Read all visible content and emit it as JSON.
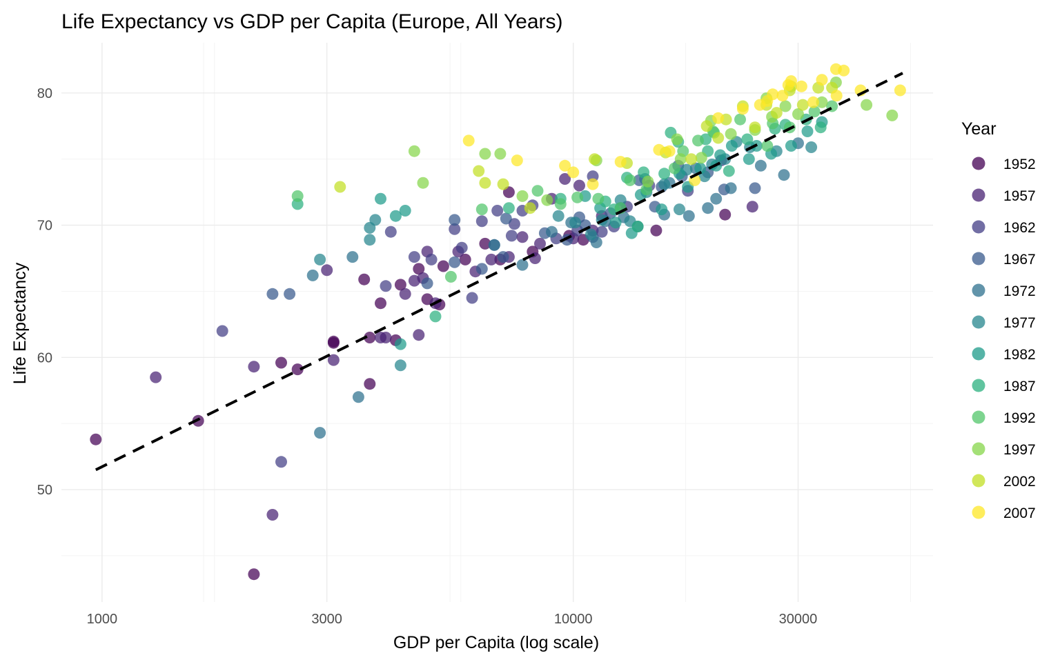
{
  "chart_data": {
    "type": "scatter",
    "title": "Life Expectancy vs GDP per Capita (Europe, All Years)",
    "xlabel": "GDP per Capita (log scale)",
    "ylabel": "Life Expectancy",
    "x_scale": "log10",
    "xlim": [
      820,
      58000
    ],
    "ylim": [
      41.5,
      83.8
    ],
    "x_ticks": [
      1000,
      3000,
      10000,
      30000
    ],
    "x_tick_labels": [
      "1000",
      "3000",
      "10000",
      "30000"
    ],
    "y_ticks": [
      50,
      60,
      70,
      80
    ],
    "y_tick_labels": [
      "50",
      "60",
      "70",
      "80"
    ],
    "grid": true,
    "legend": {
      "title": "Year",
      "position": "right",
      "entries": [
        {
          "label": "1952",
          "color": "#440154"
        },
        {
          "label": "1957",
          "color": "#482173"
        },
        {
          "label": "1962",
          "color": "#433E85"
        },
        {
          "label": "1967",
          "color": "#38598C"
        },
        {
          "label": "1972",
          "color": "#2D708E"
        },
        {
          "label": "1977",
          "color": "#25858E"
        },
        {
          "label": "1982",
          "color": "#1E9B8A"
        },
        {
          "label": "1987",
          "color": "#2BB07F"
        },
        {
          "label": "1992",
          "color": "#51C56A"
        },
        {
          "label": "1997",
          "color": "#85D54A"
        },
        {
          "label": "2002",
          "color": "#C2DF23"
        },
        {
          "label": "2007",
          "color": "#FDE725"
        }
      ]
    },
    "trend_line": {
      "style": "dashed",
      "color": "#000000",
      "x": [
        970,
        50000
      ],
      "y": [
        51.5,
        81.5
      ]
    },
    "series": [
      {
        "name": "1952",
        "points": [
          [
            970,
            53.8
          ],
          [
            1600,
            55.2
          ],
          [
            2100,
            43.6
          ],
          [
            2600,
            59.1
          ],
          [
            3100,
            61.2
          ],
          [
            2400,
            59.6
          ],
          [
            3700,
            58.0
          ],
          [
            3600,
            65.9
          ],
          [
            4300,
            65.5
          ],
          [
            3900,
            64.1
          ],
          [
            5900,
            67.4
          ],
          [
            4900,
            64.4
          ],
          [
            7000,
            67.4
          ],
          [
            7300,
            72.5
          ],
          [
            8200,
            68.0
          ],
          [
            9800,
            69.2
          ],
          [
            15000,
            69.6
          ],
          [
            21000,
            70.8
          ],
          [
            10500,
            68.9
          ],
          [
            6500,
            68.6
          ],
          [
            3700,
            61.5
          ],
          [
            4200,
            61.3
          ],
          [
            4700,
            66.7
          ],
          [
            5300,
            66.9
          ],
          [
            5200,
            64.0
          ],
          [
            3100,
            61.1
          ]
        ]
      },
      {
        "name": "1957",
        "points": [
          [
            1300,
            58.5
          ],
          [
            2100,
            59.3
          ],
          [
            3100,
            59.8
          ],
          [
            2300,
            48.1
          ],
          [
            4000,
            61.5
          ],
          [
            4700,
            61.7
          ],
          [
            5100,
            64.1
          ],
          [
            4900,
            68.0
          ],
          [
            3000,
            66.6
          ],
          [
            4800,
            66.0
          ],
          [
            4400,
            64.8
          ],
          [
            6200,
            66.5
          ],
          [
            6700,
            67.4
          ],
          [
            8300,
            67.5
          ],
          [
            9000,
            72.0
          ],
          [
            5700,
            68.0
          ],
          [
            7300,
            67.6
          ],
          [
            8500,
            68.6
          ],
          [
            10000,
            69.0
          ],
          [
            7800,
            69.1
          ],
          [
            24000,
            71.4
          ],
          [
            9600,
            73.5
          ],
          [
            10300,
            73.0
          ],
          [
            11000,
            69.6
          ],
          [
            11500,
            70.7
          ],
          [
            4600,
            65.8
          ],
          [
            3900,
            61.5
          ]
        ]
      },
      {
        "name": "1962",
        "points": [
          [
            1800,
            62.0
          ],
          [
            2400,
            52.1
          ],
          [
            4100,
            69.5
          ],
          [
            6400,
            70.3
          ],
          [
            6900,
            71.1
          ],
          [
            5800,
            68.3
          ],
          [
            6100,
            64.5
          ],
          [
            5000,
            67.4
          ],
          [
            4000,
            65.4
          ],
          [
            7400,
            69.2
          ],
          [
            9200,
            69.0
          ],
          [
            10200,
            69.6
          ],
          [
            11000,
            73.7
          ],
          [
            13000,
            71.4
          ],
          [
            8200,
            71.5
          ],
          [
            7800,
            71.1
          ],
          [
            12200,
            69.9
          ],
          [
            14500,
            73.0
          ],
          [
            17500,
            72.6
          ],
          [
            20600,
            74.9
          ],
          [
            11500,
            69.5
          ],
          [
            7500,
            70.1
          ],
          [
            4600,
            67.6
          ],
          [
            5600,
            69.7
          ]
        ]
      },
      {
        "name": "1967",
        "points": [
          [
            2300,
            64.8
          ],
          [
            2500,
            64.8
          ],
          [
            5600,
            70.4
          ],
          [
            6400,
            66.7
          ],
          [
            4900,
            65.6
          ],
          [
            7100,
            67.6
          ],
          [
            9700,
            68.9
          ],
          [
            10600,
            70.0
          ],
          [
            12600,
            71.3
          ],
          [
            13800,
            73.4
          ],
          [
            15400,
            72.9
          ],
          [
            16700,
            74.5
          ],
          [
            19300,
            74.0
          ],
          [
            20900,
            72.7
          ],
          [
            24300,
            72.8
          ],
          [
            10300,
            70.6
          ],
          [
            12000,
            70.9
          ],
          [
            14900,
            71.4
          ],
          [
            17000,
            73.7
          ],
          [
            6800,
            68.5
          ],
          [
            7200,
            70.5
          ],
          [
            8700,
            69.4
          ],
          [
            11000,
            69.1
          ],
          [
            5600,
            67.2
          ]
        ]
      },
      {
        "name": "1972",
        "points": [
          [
            2900,
            54.3
          ],
          [
            2800,
            66.2
          ],
          [
            3400,
            67.6
          ],
          [
            3500,
            57.0
          ],
          [
            6800,
            68.5
          ],
          [
            7800,
            67.0
          ],
          [
            9000,
            69.5
          ],
          [
            11200,
            68.7
          ],
          [
            12800,
            70.6
          ],
          [
            14200,
            73.5
          ],
          [
            16000,
            73.2
          ],
          [
            18200,
            74.3
          ],
          [
            21600,
            72.8
          ],
          [
            25000,
            74.5
          ],
          [
            28000,
            73.8
          ],
          [
            30000,
            76.2
          ],
          [
            17600,
            70.7
          ],
          [
            20100,
            72.0
          ],
          [
            11700,
            70.3
          ],
          [
            9900,
            70.2
          ],
          [
            13700,
            69.9
          ],
          [
            15600,
            70.8
          ],
          [
            19300,
            71.3
          ]
        ]
      },
      {
        "name": "1977",
        "points": [
          [
            2900,
            67.4
          ],
          [
            3700,
            68.9
          ],
          [
            3700,
            69.8
          ],
          [
            4300,
            59.4
          ],
          [
            3800,
            70.4
          ],
          [
            10100,
            70.2
          ],
          [
            10900,
            69.3
          ],
          [
            12600,
            71.9
          ],
          [
            14300,
            72.5
          ],
          [
            15600,
            73.1
          ],
          [
            17400,
            74.2
          ],
          [
            19700,
            74.6
          ],
          [
            22200,
            76.3
          ],
          [
            23700,
            75.9
          ],
          [
            27000,
            75.6
          ],
          [
            32000,
            75.9
          ],
          [
            21000,
            75.0
          ],
          [
            19000,
            73.7
          ],
          [
            13200,
            70.3
          ],
          [
            11500,
            70.4
          ],
          [
            9300,
            70.7
          ],
          [
            16800,
            71.2
          ]
        ]
      },
      {
        "name": "1982",
        "points": [
          [
            4200,
            70.7
          ],
          [
            4400,
            71.1
          ],
          [
            3900,
            72.0
          ],
          [
            4300,
            61.0
          ],
          [
            13300,
            69.4
          ],
          [
            15400,
            71.2
          ],
          [
            17500,
            72.9
          ],
          [
            18600,
            74.3
          ],
          [
            20500,
            75.3
          ],
          [
            21700,
            76.0
          ],
          [
            23600,
            75.0
          ],
          [
            26300,
            75.4
          ],
          [
            29000,
            76.0
          ],
          [
            31400,
            77.1
          ],
          [
            33700,
            77.8
          ],
          [
            24500,
            76.0
          ],
          [
            20100,
            74.5
          ],
          [
            16800,
            73.9
          ],
          [
            13900,
            72.3
          ],
          [
            12300,
            70.2
          ],
          [
            11400,
            71.3
          ],
          [
            10600,
            72.2
          ]
        ]
      },
      {
        "name": "1987",
        "points": [
          [
            2600,
            71.6
          ],
          [
            5100,
            63.1
          ],
          [
            7300,
            71.3
          ],
          [
            9400,
            72.0
          ],
          [
            12200,
            71.2
          ],
          [
            13700,
            69.9
          ],
          [
            15600,
            73.9
          ],
          [
            16700,
            76.3
          ],
          [
            19300,
            75.6
          ],
          [
            21400,
            74.1
          ],
          [
            23400,
            76.5
          ],
          [
            26800,
            77.3
          ],
          [
            28200,
            77.6
          ],
          [
            31200,
            78.0
          ],
          [
            33500,
            77.4
          ],
          [
            19100,
            76.5
          ],
          [
            16100,
            77.0
          ],
          [
            13000,
            73.6
          ],
          [
            11700,
            71.8
          ],
          [
            14100,
            74.0
          ]
        ]
      },
      {
        "name": "1992",
        "points": [
          [
            2600,
            72.2
          ],
          [
            5500,
            66.1
          ],
          [
            6400,
            71.2
          ],
          [
            8400,
            72.6
          ],
          [
            10200,
            72.1
          ],
          [
            12600,
            71.3
          ],
          [
            14300,
            72.7
          ],
          [
            16400,
            74.3
          ],
          [
            18400,
            76.4
          ],
          [
            19800,
            77.1
          ],
          [
            22600,
            78.0
          ],
          [
            25800,
            76.0
          ],
          [
            26500,
            77.7
          ],
          [
            28800,
            77.4
          ],
          [
            32500,
            78.6
          ],
          [
            35400,
            79.0
          ],
          [
            17100,
            75.6
          ],
          [
            19900,
            77.0
          ],
          [
            13200,
            73.4
          ],
          [
            11300,
            72.0
          ],
          [
            9400,
            71.6
          ]
        ]
      },
      {
        "name": "1997",
        "points": [
          [
            4600,
            75.6
          ],
          [
            4800,
            73.2
          ],
          [
            6500,
            75.4
          ],
          [
            7000,
            75.4
          ],
          [
            7800,
            72.2
          ],
          [
            8800,
            71.9
          ],
          [
            11200,
            74.9
          ],
          [
            14400,
            73.3
          ],
          [
            16600,
            76.5
          ],
          [
            18700,
            75.1
          ],
          [
            21600,
            76.9
          ],
          [
            24300,
            77.2
          ],
          [
            26400,
            78.2
          ],
          [
            28200,
            79.0
          ],
          [
            30000,
            78.4
          ],
          [
            33700,
            79.3
          ],
          [
            36100,
            80.8
          ],
          [
            41900,
            79.1
          ],
          [
            47500,
            78.3
          ],
          [
            19600,
            77.9
          ],
          [
            16900,
            75.0
          ],
          [
            25700,
            79.6
          ]
        ]
      },
      {
        "name": "2002",
        "points": [
          [
            3200,
            72.9
          ],
          [
            6300,
            74.1
          ],
          [
            6500,
            73.2
          ],
          [
            7100,
            73.1
          ],
          [
            8100,
            71.3
          ],
          [
            11100,
            75.0
          ],
          [
            13000,
            74.7
          ],
          [
            15700,
            75.5
          ],
          [
            17800,
            75.0
          ],
          [
            19200,
            77.5
          ],
          [
            21100,
            78.0
          ],
          [
            22900,
            79.0
          ],
          [
            25700,
            79.1
          ],
          [
            27000,
            78.5
          ],
          [
            28800,
            80.2
          ],
          [
            30700,
            79.1
          ],
          [
            33100,
            80.4
          ],
          [
            35400,
            80.4
          ],
          [
            29000,
            80.5
          ],
          [
            24300,
            77.4
          ],
          [
            20300,
            76.6
          ]
        ]
      },
      {
        "name": "2007",
        "points": [
          [
            6000,
            76.4
          ],
          [
            7600,
            74.9
          ],
          [
            9600,
            74.5
          ],
          [
            10000,
            74.0
          ],
          [
            11000,
            73.1
          ],
          [
            12600,
            74.8
          ],
          [
            15200,
            75.7
          ],
          [
            16000,
            75.6
          ],
          [
            18100,
            73.4
          ],
          [
            20300,
            78.1
          ],
          [
            22900,
            78.8
          ],
          [
            25800,
            79.4
          ],
          [
            27800,
            79.8
          ],
          [
            29000,
            80.9
          ],
          [
            30500,
            80.5
          ],
          [
            32300,
            79.3
          ],
          [
            33700,
            81.0
          ],
          [
            36100,
            81.8
          ],
          [
            37500,
            81.7
          ],
          [
            40700,
            80.2
          ],
          [
            49400,
            80.2
          ],
          [
            36200,
            79.8
          ],
          [
            28600,
            80.6
          ],
          [
            26500,
            79.9
          ],
          [
            24900,
            79.1
          ]
        ]
      }
    ]
  }
}
